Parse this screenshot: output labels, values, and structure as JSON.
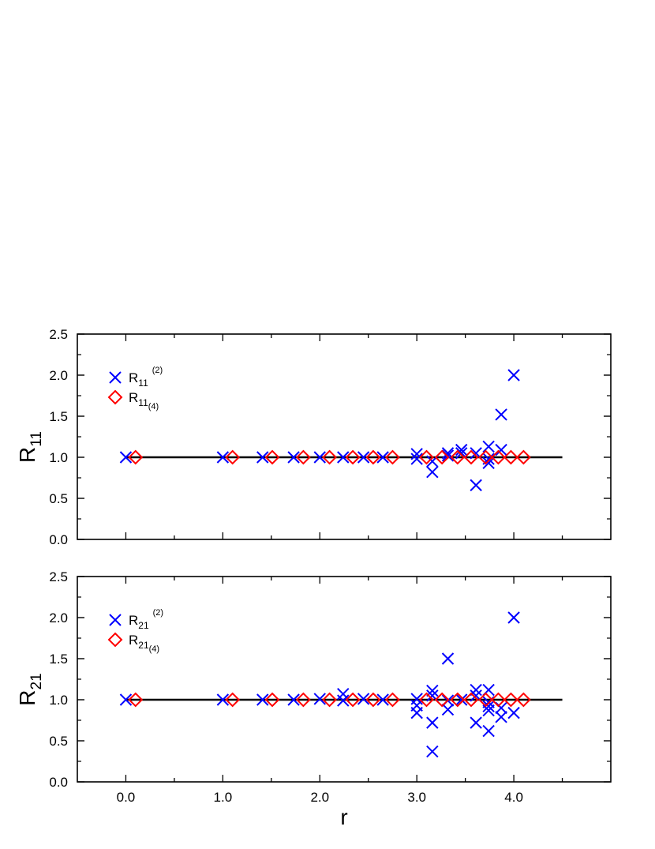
{
  "chart_data": [
    {
      "type": "scatter",
      "ylabel_main": "R",
      "ylabel_sub": "11",
      "xlim": [
        -0.5,
        5.0
      ],
      "ylim": [
        0.0,
        2.5
      ],
      "yticks": [
        "0.0",
        "0.5",
        "1.0",
        "1.5",
        "2.0",
        "2.5"
      ],
      "reference_line": {
        "y": 1.0,
        "x_from": 0.0,
        "x_to": 4.5
      },
      "legend_position": "top-left",
      "series": [
        {
          "marker": "cross",
          "color": "#0000ff",
          "legend": {
            "main": "R",
            "sub": "11",
            "sup": "(2)"
          },
          "points": [
            [
              0.0,
              1.0
            ],
            [
              1.0,
              1.0
            ],
            [
              1.41,
              1.0
            ],
            [
              1.73,
              1.0
            ],
            [
              2.0,
              1.0
            ],
            [
              2.24,
              1.0
            ],
            [
              2.45,
              1.0
            ],
            [
              2.65,
              1.0
            ],
            [
              3.0,
              1.04
            ],
            [
              3.0,
              0.98
            ],
            [
              3.16,
              0.82
            ],
            [
              3.16,
              0.95
            ],
            [
              3.32,
              1.05
            ],
            [
              3.32,
              1.02
            ],
            [
              3.46,
              1.09
            ],
            [
              3.46,
              1.05
            ],
            [
              3.61,
              1.05
            ],
            [
              3.61,
              0.66
            ],
            [
              3.74,
              1.13
            ],
            [
              3.74,
              0.98
            ],
            [
              3.74,
              0.93
            ],
            [
              3.87,
              1.09
            ],
            [
              3.87,
              1.52
            ],
            [
              4.0,
              2.0
            ]
          ]
        },
        {
          "marker": "diamond",
          "color": "#ff0000",
          "legend": {
            "main": "R",
            "sub": "11",
            "sup": "(4)"
          },
          "points": [
            [
              0.1,
              1.0
            ],
            [
              1.1,
              1.0
            ],
            [
              1.51,
              1.0
            ],
            [
              1.83,
              1.0
            ],
            [
              2.1,
              1.0
            ],
            [
              2.34,
              1.0
            ],
            [
              2.55,
              1.0
            ],
            [
              2.75,
              1.0
            ],
            [
              3.1,
              1.0
            ],
            [
              3.26,
              1.0
            ],
            [
              3.42,
              1.0
            ],
            [
              3.56,
              1.0
            ],
            [
              3.71,
              1.0
            ],
            [
              3.84,
              1.0
            ],
            [
              3.97,
              1.0
            ],
            [
              4.1,
              1.0
            ]
          ]
        }
      ]
    },
    {
      "type": "scatter",
      "ylabel_main": "R",
      "ylabel_sub": "21",
      "xlabel": "r",
      "xlim": [
        -0.5,
        5.0
      ],
      "ylim": [
        0.0,
        2.5
      ],
      "xticks": [
        "0.0",
        "1.0",
        "2.0",
        "3.0",
        "4.0"
      ],
      "yticks": [
        "0.0",
        "0.5",
        "1.0",
        "1.5",
        "2.0",
        "2.5"
      ],
      "reference_line": {
        "y": 1.0,
        "x_from": 0.0,
        "x_to": 4.5
      },
      "legend_position": "top-left",
      "series": [
        {
          "marker": "cross",
          "color": "#0000ff",
          "legend": {
            "main": "R",
            "sub": "21",
            "sup": "(2)"
          },
          "points": [
            [
              0.0,
              1.0
            ],
            [
              1.0,
              1.0
            ],
            [
              1.41,
              1.0
            ],
            [
              1.73,
              1.0
            ],
            [
              2.0,
              1.01
            ],
            [
              2.24,
              1.07
            ],
            [
              2.24,
              0.99
            ],
            [
              2.45,
              1.01
            ],
            [
              2.65,
              1.0
            ],
            [
              3.0,
              1.01
            ],
            [
              3.0,
              0.84
            ],
            [
              3.0,
              0.93
            ],
            [
              3.16,
              1.11
            ],
            [
              3.16,
              1.05
            ],
            [
              3.16,
              0.72
            ],
            [
              3.16,
              0.37
            ],
            [
              3.32,
              1.5
            ],
            [
              3.32,
              0.99
            ],
            [
              3.32,
              0.88
            ],
            [
              3.46,
              1.0
            ],
            [
              3.61,
              1.12
            ],
            [
              3.61,
              1.05
            ],
            [
              3.61,
              0.72
            ],
            [
              3.74,
              1.12
            ],
            [
              3.74,
              0.97
            ],
            [
              3.74,
              0.92
            ],
            [
              3.74,
              0.87
            ],
            [
              3.74,
              0.62
            ],
            [
              3.87,
              0.9
            ],
            [
              3.87,
              0.79
            ],
            [
              4.0,
              2.0
            ],
            [
              4.0,
              0.84
            ]
          ]
        },
        {
          "marker": "diamond",
          "color": "#ff0000",
          "legend": {
            "main": "R",
            "sub": "21",
            "sup": "(4)"
          },
          "points": [
            [
              0.1,
              1.0
            ],
            [
              1.1,
              1.0
            ],
            [
              1.51,
              1.0
            ],
            [
              1.83,
              1.0
            ],
            [
              2.1,
              1.0
            ],
            [
              2.34,
              1.0
            ],
            [
              2.55,
              1.0
            ],
            [
              2.75,
              1.0
            ],
            [
              3.1,
              1.0
            ],
            [
              3.26,
              1.0
            ],
            [
              3.42,
              1.0
            ],
            [
              3.56,
              1.0
            ],
            [
              3.71,
              1.0
            ],
            [
              3.84,
              1.0
            ],
            [
              3.97,
              1.0
            ],
            [
              4.1,
              1.0
            ]
          ]
        }
      ]
    }
  ]
}
